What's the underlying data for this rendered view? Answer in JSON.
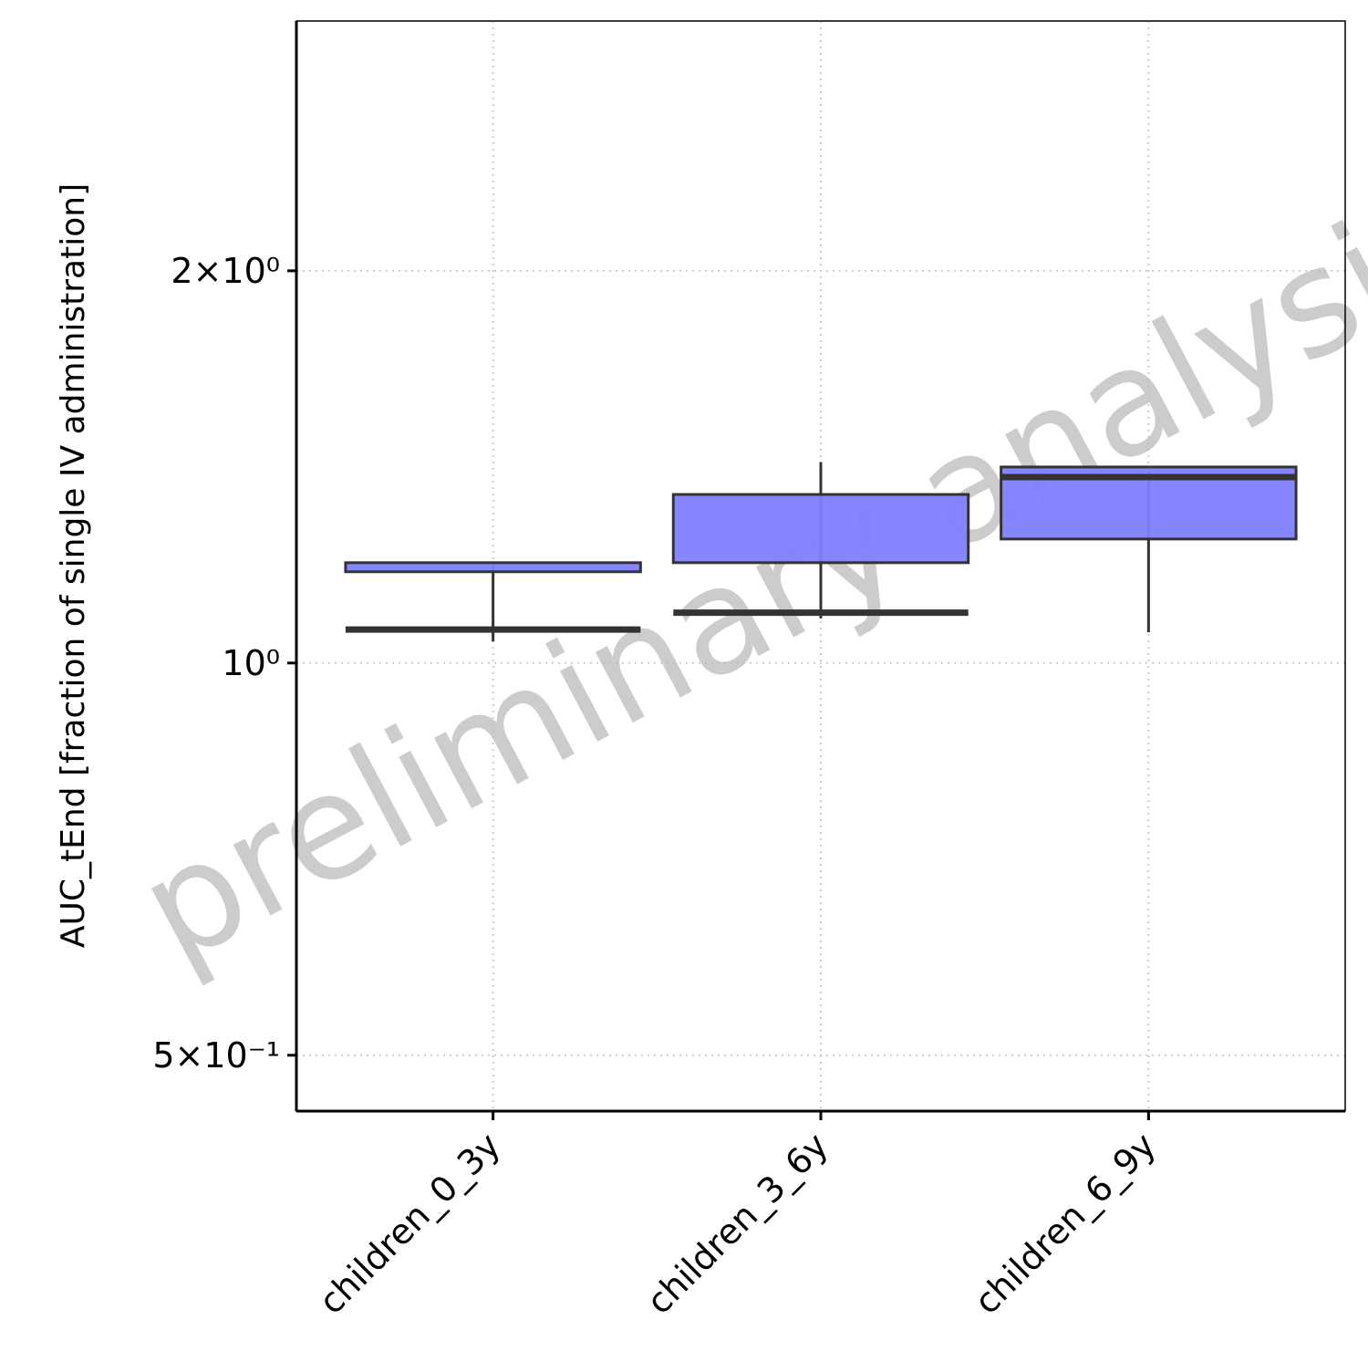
{
  "chart_data": {
    "type": "box",
    "y_label": "AUC_tEnd [fraction of single IV administration]",
    "annotation": "preliminary analysis",
    "categories": [
      "children_0_3y",
      "children_3_6y",
      "children_6_9y"
    ],
    "series": [
      {
        "color": "#8080ff",
        "edgecolor": "#333333",
        "whislo": [
          1.039,
          1.082,
          1.056
        ],
        "q1": [
          1.175,
          1.194,
          1.245
        ],
        "med": [
          1.061,
          1.093,
          1.389
        ],
        "q3": [
          1.194,
          1.347,
          1.414
        ],
        "whishi": [
          1.194,
          1.426,
          1.403
        ]
      }
    ],
    "ylog": true,
    "ylim": [
      0.453,
      3.11
    ],
    "yticks": [
      {
        "value": 0.5,
        "label": "5×10⁻¹"
      },
      {
        "value": 1,
        "label": "10⁰"
      },
      {
        "value": 2,
        "label": "2×10⁰"
      }
    ],
    "grid": true
  }
}
